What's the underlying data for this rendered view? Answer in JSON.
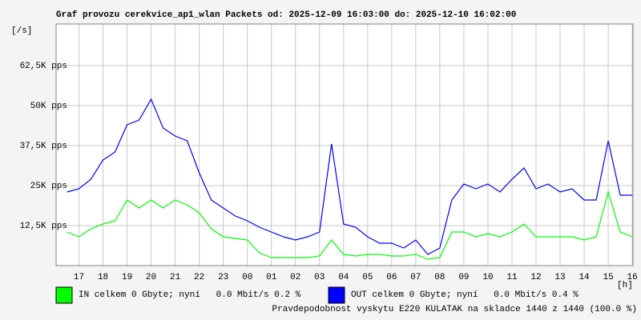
{
  "chart_data": {
    "type": "line",
    "title": "Graf provozu cerekvice_ap1_wlan Packets od: 2025-12-09 16:03:00 do: 2025-12-10 16:02:00",
    "ylabel": "[/s]",
    "xlabel": "[h]",
    "x": [
      16.5,
      17,
      17.5,
      18,
      18.5,
      19,
      19.5,
      20,
      20.5,
      21,
      21.5,
      22,
      22.5,
      23,
      23.5,
      24,
      24.5,
      25,
      25.5,
      26,
      26.5,
      27,
      27.5,
      28,
      28.5,
      29,
      29.5,
      30,
      30.5,
      31,
      31.5,
      32,
      32.5,
      33,
      33.5,
      34,
      34.5,
      35,
      35.5,
      36,
      36.5,
      37,
      37.5,
      38,
      38.5,
      39,
      39.5,
      40
    ],
    "series": [
      {
        "name": "OUT celkem 0 Gbyte; nyní   0.0 Mbit/s 0.4 %",
        "color": "#0000ff",
        "values": [
          23000,
          24000,
          27000,
          33000,
          35500,
          44000,
          45500,
          52000,
          43000,
          40500,
          39000,
          29000,
          20500,
          18000,
          15500,
          14000,
          12000,
          10500,
          9000,
          8000,
          9000,
          10500,
          38000,
          13000,
          12000,
          9000,
          7000,
          7000,
          5500,
          8000,
          3500,
          5500,
          20500,
          25500,
          24000,
          25500,
          23000,
          27000,
          30500,
          24000,
          25500,
          23000,
          24000,
          20500,
          20500,
          39000,
          22000,
          22000
        ]
      },
      {
        "name": "IN celkem 0 Gbyte; nyní   0.0 Mbit/s 0.2 %",
        "color": "#00ff00",
        "values": [
          10500,
          9000,
          11500,
          13000,
          14000,
          20500,
          18000,
          20500,
          18000,
          20500,
          19000,
          16500,
          11500,
          9000,
          8500,
          8000,
          4000,
          2500,
          2500,
          2500,
          2500,
          3000,
          8000,
          3500,
          3000,
          3500,
          3500,
          3000,
          3000,
          3500,
          2000,
          2500,
          10500,
          10500,
          9000,
          10000,
          9000,
          10500,
          13000,
          9000,
          9000,
          9000,
          9000,
          8000,
          9000,
          23000,
          10500,
          9000
        ]
      }
    ],
    "xlim": [
      16.05,
      40.03
    ],
    "xticks": [
      17,
      18,
      19,
      20,
      21,
      22,
      23,
      {
        "value": 24,
        "label": "00"
      },
      {
        "value": 25,
        "label": "01"
      },
      {
        "value": 26,
        "label": "02"
      },
      {
        "value": 27,
        "label": "03"
      },
      {
        "value": 28,
        "label": "04"
      },
      {
        "value": 29,
        "label": "05"
      },
      {
        "value": 30,
        "label": "06"
      },
      {
        "value": 31,
        "label": "07"
      },
      {
        "value": 32,
        "label": "08"
      },
      {
        "value": 33,
        "label": "09"
      },
      {
        "value": 34,
        "label": "10"
      },
      {
        "value": 35,
        "label": "11"
      },
      {
        "value": 36,
        "label": "12"
      },
      {
        "value": 37,
        "label": "13"
      },
      {
        "value": 38,
        "label": "14"
      },
      {
        "value": 39,
        "label": "15"
      },
      {
        "value": 40,
        "label": "16"
      }
    ],
    "ylim": [
      0,
      75500
    ],
    "yticks": [
      {
        "value": 12500,
        "label": "12,5K pps"
      },
      {
        "value": 25000,
        "label": "25K pps"
      },
      {
        "value": 37500,
        "label": "37,5K pps"
      },
      {
        "value": 50000,
        "label": "50K pps"
      },
      {
        "value": 62500,
        "label": "62,5K pps"
      }
    ],
    "grid": true,
    "footer": "Pravdepodobnost vyskytu E220 KULATAK na skladce 1440 z 1440 (100.0 %)",
    "footer_color": "#ff0000"
  }
}
